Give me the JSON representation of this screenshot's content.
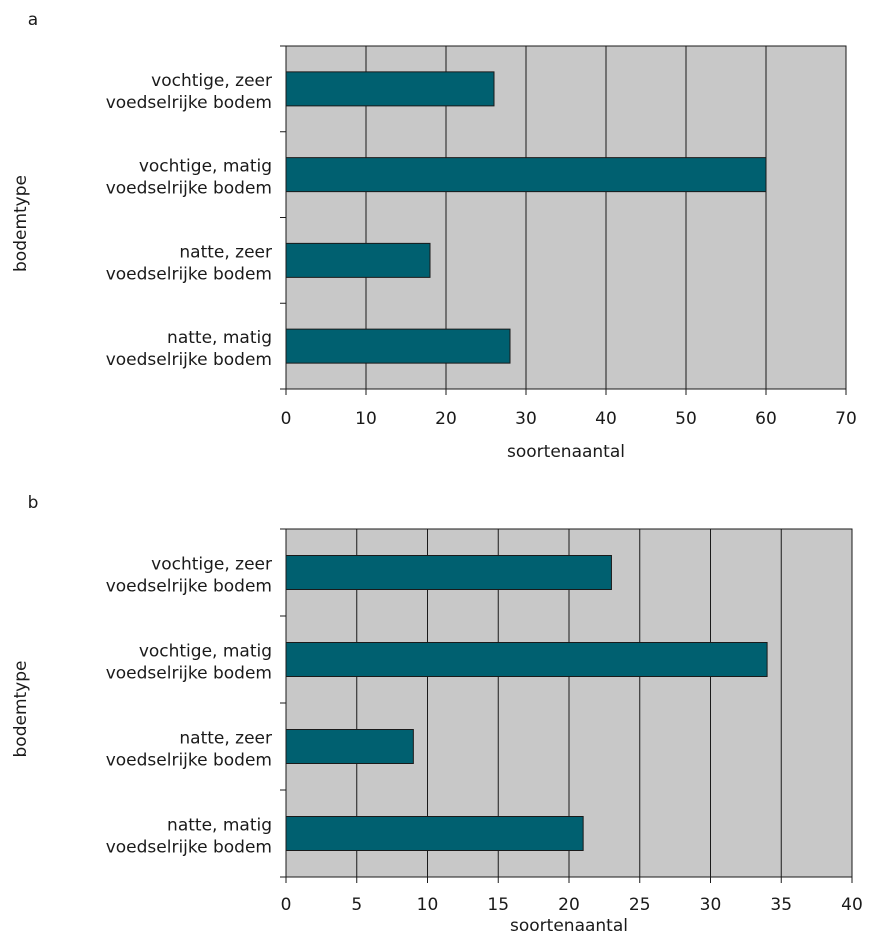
{
  "chart_data": [
    {
      "type": "bar",
      "panel_label": "a",
      "orientation": "horizontal",
      "categories": [
        [
          "vochtige, zeer",
          "voedselrijke bodem"
        ],
        [
          "vochtige, matig",
          "voedselrijke bodem"
        ],
        [
          "natte, zeer",
          "voedselrijke bodem"
        ],
        [
          "natte, matig",
          "voedselrijke bodem"
        ]
      ],
      "values": [
        26,
        60,
        18,
        28
      ],
      "xlabel": "soortenaantal",
      "ylabel": "bodemtype",
      "xlim": [
        0,
        70
      ],
      "xticks": [
        0,
        10,
        20,
        30,
        40,
        50,
        60,
        70
      ],
      "grid": true,
      "bar_color": "#006070",
      "plot_background": "#c8c8c8"
    },
    {
      "type": "bar",
      "panel_label": "b",
      "orientation": "horizontal",
      "categories": [
        [
          "vochtige, zeer",
          "voedselrijke bodem"
        ],
        [
          "vochtige, matig",
          "voedselrijke bodem"
        ],
        [
          "natte, zeer",
          "voedselrijke bodem"
        ],
        [
          "natte, matig",
          "voedselrijke bodem"
        ]
      ],
      "values": [
        23,
        34,
        9,
        21
      ],
      "xlabel": "soortenaantal",
      "ylabel": "bodemtype",
      "xlim": [
        0,
        40
      ],
      "xticks": [
        0,
        5,
        10,
        15,
        20,
        25,
        30,
        35,
        40
      ],
      "grid": true,
      "bar_color": "#006070",
      "plot_background": "#c8c8c8"
    }
  ]
}
